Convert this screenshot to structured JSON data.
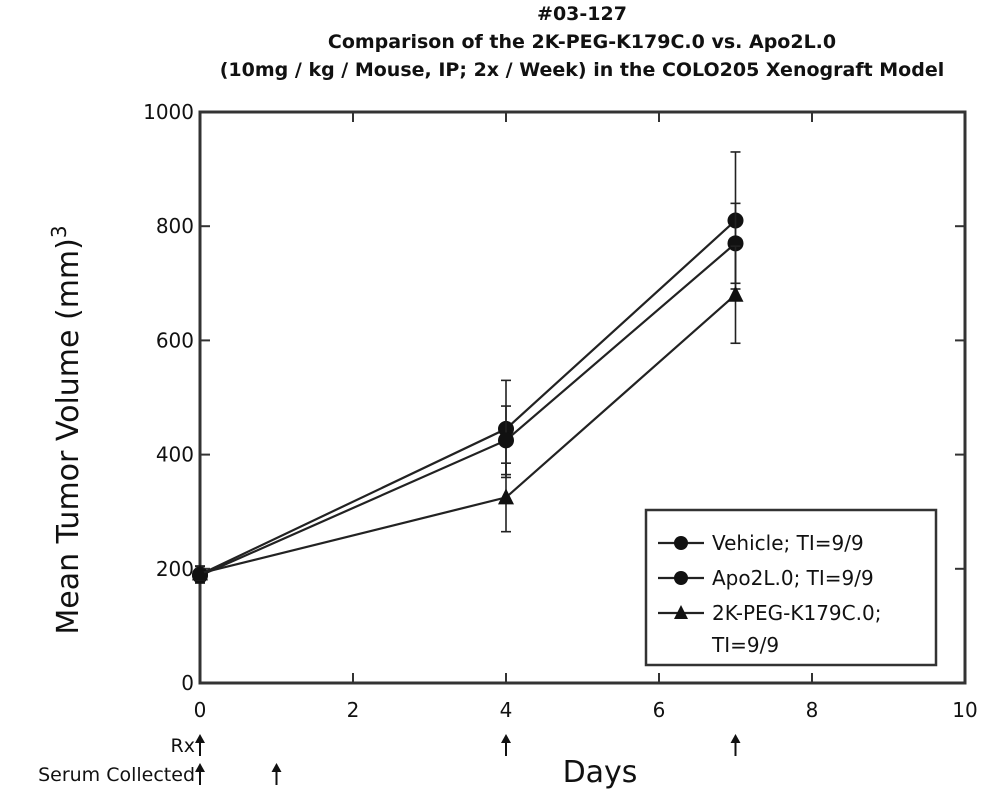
{
  "chart_data": {
    "type": "line",
    "title_lines": [
      "#03-127",
      "Comparison of the 2K-PEG-K179C.0 vs. Apo2L.0",
      "(10mg / kg / Mouse, IP; 2x / Week) in the COLO205 Xenograft Model"
    ],
    "xlabel": "Days",
    "ylabel": "Mean Tumor Volume (mm)",
    "ylabel_superscript": "3",
    "xlim": [
      0,
      10
    ],
    "ylim": [
      0,
      1000
    ],
    "x_ticks": [
      "0",
      "2",
      "4",
      "6",
      "8",
      "10"
    ],
    "y_ticks": [
      "0",
      "200",
      "400",
      "600",
      "800",
      "1000"
    ],
    "grid": false,
    "legend_position": "bottom-right",
    "series": [
      {
        "name": "Vehicle; TI=9/9",
        "marker": "circle",
        "x": [
          0,
          4,
          7
        ],
        "y": [
          190,
          445,
          810
        ],
        "err": [
          15,
          85,
          120
        ]
      },
      {
        "name": "Apo2L.0; TI=9/9",
        "marker": "circle",
        "x": [
          0,
          4,
          7
        ],
        "y": [
          188,
          425,
          770
        ],
        "err": [
          12,
          60,
          70
        ]
      },
      {
        "name": "2K-PEG-K179C.0; TI=9/9",
        "marker": "triangle",
        "x": [
          0,
          4,
          7
        ],
        "y": [
          192,
          325,
          680
        ],
        "err": [
          12,
          60,
          85
        ]
      }
    ],
    "annotation_rows": [
      {
        "label": "Rx",
        "days": [
          0,
          4,
          7
        ]
      },
      {
        "label": "Serum Collected",
        "days": [
          0,
          1
        ]
      }
    ]
  }
}
